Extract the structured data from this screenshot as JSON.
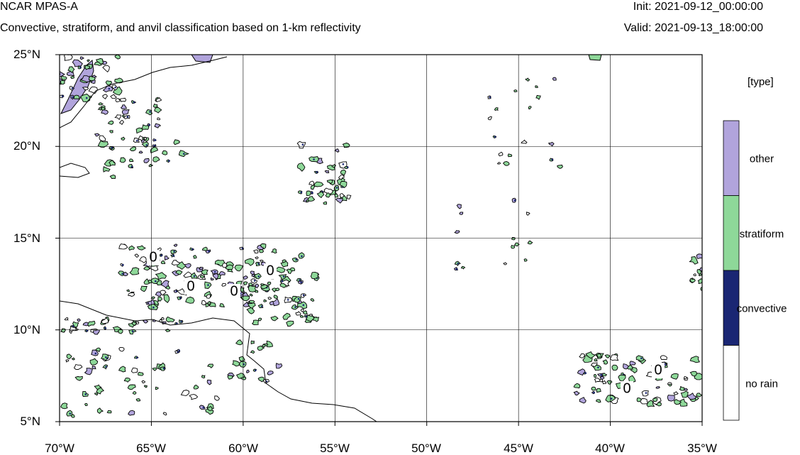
{
  "header": {
    "title": "NCAR MPAS-A",
    "subtitle": "Convective, stratiform, and anvil classification based on 1-km reflectivity",
    "init": "Init: 2021-09-12_00:00:00",
    "valid": "Valid: 2021-09-13_18:00:00"
  },
  "axes": {
    "lat_labels": [
      "25°N",
      "20°N",
      "15°N",
      "10°N",
      "5°N"
    ],
    "lon_labels": [
      "70°W",
      "65°W",
      "60°W",
      "55°W",
      "50°W",
      "45°W",
      "40°W",
      "35°W"
    ],
    "lon_range": [
      -70,
      -35
    ],
    "lat_range": [
      5,
      25
    ],
    "grid": true
  },
  "legend": {
    "title": "[type]",
    "items": [
      {
        "label": "other",
        "color": "#b1a4dc"
      },
      {
        "label": "stratiform",
        "color": "#8ed899"
      },
      {
        "label": "convective",
        "color": "#1a2673"
      },
      {
        "label": "no rain",
        "color": "#ffffff"
      }
    ]
  },
  "contour_labels": [
    "0",
    "0",
    "0",
    "0",
    "0",
    "0",
    "0"
  ]
}
